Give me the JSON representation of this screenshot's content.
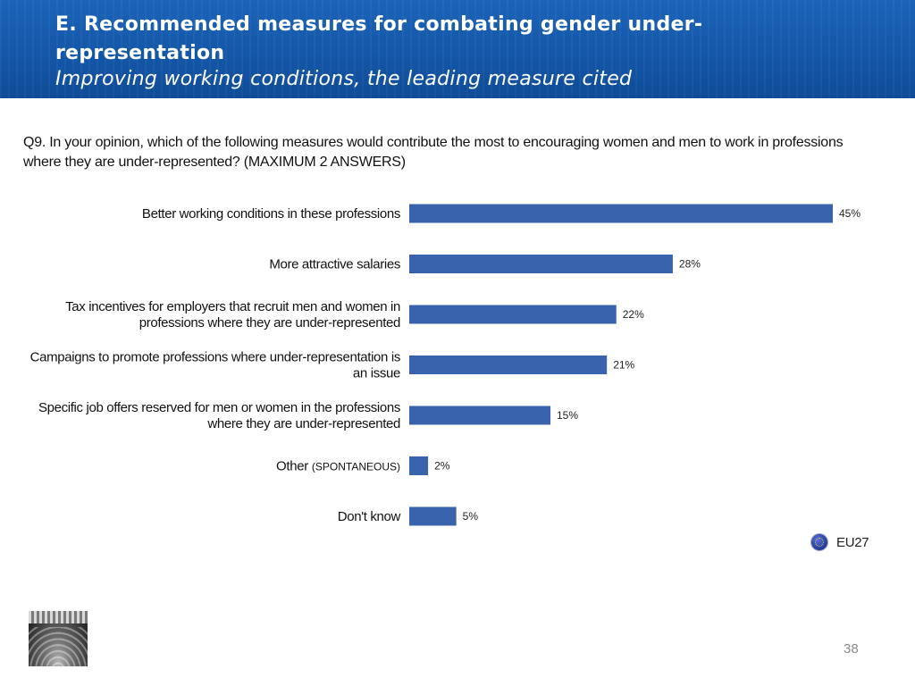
{
  "header": {
    "title": "E. Recommended measures for combating gender under-representation",
    "subtitle": "Improving working conditions, the leading measure cited"
  },
  "question": "Q9. In your opinion, which of the following measures would contribute the most to encouraging women and men to work in professions where they are under-represented? (MAXIMUM 2 ANSWERS)",
  "legend": {
    "label": "EU27",
    "icon": "eu-flag-icon"
  },
  "footer": {
    "page_number": "38",
    "photo": "parliament-hemicycle-photo"
  },
  "colors": {
    "banner": "#1a5fb4",
    "bar": "#3a63ad"
  },
  "chart_data": {
    "type": "bar",
    "orientation": "horizontal",
    "categories": [
      [
        "Better working conditions in these professions"
      ],
      [
        "More attractive salaries"
      ],
      [
        "Tax incentives for employers that recruit men and women in",
        "professions where they are under-represented"
      ],
      [
        "Campaigns to promote professions where under-representation is",
        "an issue"
      ],
      [
        "Specific job offers reserved for men or women in the professions",
        "where they are under-represented"
      ],
      [
        "Other",
        "(SPONTANEOUS)"
      ],
      [
        "Don't know"
      ]
    ],
    "values": [
      45,
      28,
      22,
      21,
      15,
      2,
      5
    ],
    "value_labels": [
      "45%",
      "28%",
      "22%",
      "21%",
      "15%",
      "2%",
      "5%"
    ],
    "series": [
      {
        "name": "EU27",
        "values": [
          45,
          28,
          22,
          21,
          15,
          2,
          5
        ]
      }
    ],
    "xlim": [
      0,
      45
    ],
    "grid": false,
    "legend_position": "bottom-right"
  }
}
